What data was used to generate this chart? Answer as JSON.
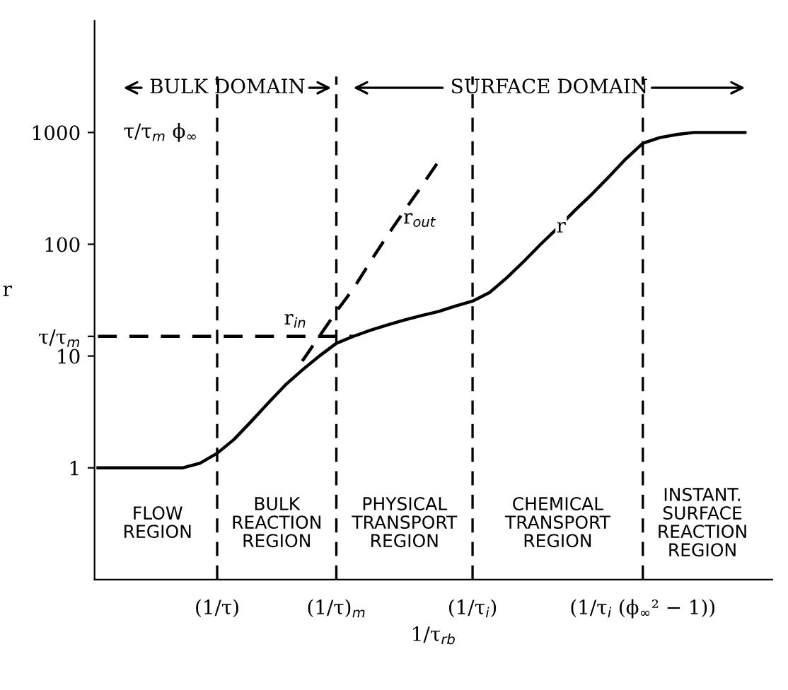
{
  "chart_data": {
    "type": "line",
    "xlabel": "1/τ$_{rb}$",
    "ylabel": "r",
    "log": "y",
    "grid": false,
    "legend": false,
    "marker": "none",
    "ylim": [
      0.1,
      10000
    ],
    "yticks": [
      1,
      10,
      {
        "value": 15,
        "label": "τ/τ$_{m}$"
      },
      100,
      1000
    ],
    "categories": [
      null,
      null,
      null,
      null,
      null,
      null,
      null,
      "(1/τ)",
      null,
      null,
      null,
      null,
      null,
      null,
      "(1/τ)$_{m}$",
      null,
      null,
      null,
      null,
      null,
      null,
      null,
      "(1/τ$_{i}$)",
      null,
      null,
      null,
      null,
      null,
      null,
      null,
      null,
      null,
      "(1/τ$_{i}$ (ϕ$_{∞}$² − 1))",
      null,
      null,
      null,
      null,
      null,
      null,
      null
    ],
    "series": [
      {
        "name": "r",
        "color": "#000000",
        "line_style": "solid",
        "values": [
          1,
          1,
          1,
          1,
          1,
          1,
          1.1,
          1.35,
          1.8,
          2.6,
          3.8,
          5.5,
          7.5,
          10,
          13,
          15,
          17,
          19,
          21,
          23,
          25,
          28,
          31,
          37,
          50,
          70,
          100,
          140,
          200,
          280,
          400,
          580,
          800,
          900,
          960,
          1000,
          1000,
          1000,
          1000,
          null
        ]
      },
      {
        "name": "r$_{out}$",
        "color": "#000000",
        "line_style": "dashed",
        "values": [
          null,
          null,
          null,
          null,
          null,
          null,
          null,
          null,
          null,
          null,
          null,
          null,
          9,
          15,
          25,
          40,
          70,
          120,
          200,
          330,
          550,
          null,
          null,
          null,
          null,
          null,
          null,
          null,
          null,
          null,
          null,
          null,
          null,
          null,
          null,
          null,
          null,
          null,
          null,
          null
        ]
      },
      {
        "name": "r$_{in}$",
        "color": "#000000",
        "line_style": "dashed",
        "values": [
          15,
          15,
          15,
          15,
          15,
          15,
          15,
          15,
          15,
          15,
          15,
          15,
          15,
          15,
          15,
          15,
          null,
          null,
          null,
          null,
          null,
          null,
          null,
          null,
          null,
          null,
          null,
          null,
          null,
          null,
          null,
          null,
          null,
          null,
          null,
          null,
          null,
          null,
          null,
          null
        ]
      }
    ],
    "ref_lines": [
      {
        "axis": "x",
        "value": "(1/τ)",
        "line_style": "dashed"
      },
      {
        "axis": "x",
        "value": "(1/τ)$_{m}$",
        "line_style": "dashed"
      },
      {
        "axis": "x",
        "value": "(1/τ$_{i}$)",
        "line_style": "dashed"
      },
      {
        "axis": "x",
        "value": "(1/τ$_{i}$ (ϕ$_{∞}$² − 1))",
        "line_style": "dashed"
      }
    ],
    "annotations": [
      "τ/τ$_{m}$ ϕ$_{∞}$",
      "BULK DOMAIN",
      "SURFACE DOMAIN",
      "FLOW\nREGION",
      "BULK\nREACTION\nREGION",
      "PHYSICAL\nTRANSPORT\nREGION",
      "CHEMICAL\nTRANSPORT\nREGION",
      "INSTANT.\nSURFACE\nREACTION\nREGION"
    ]
  }
}
